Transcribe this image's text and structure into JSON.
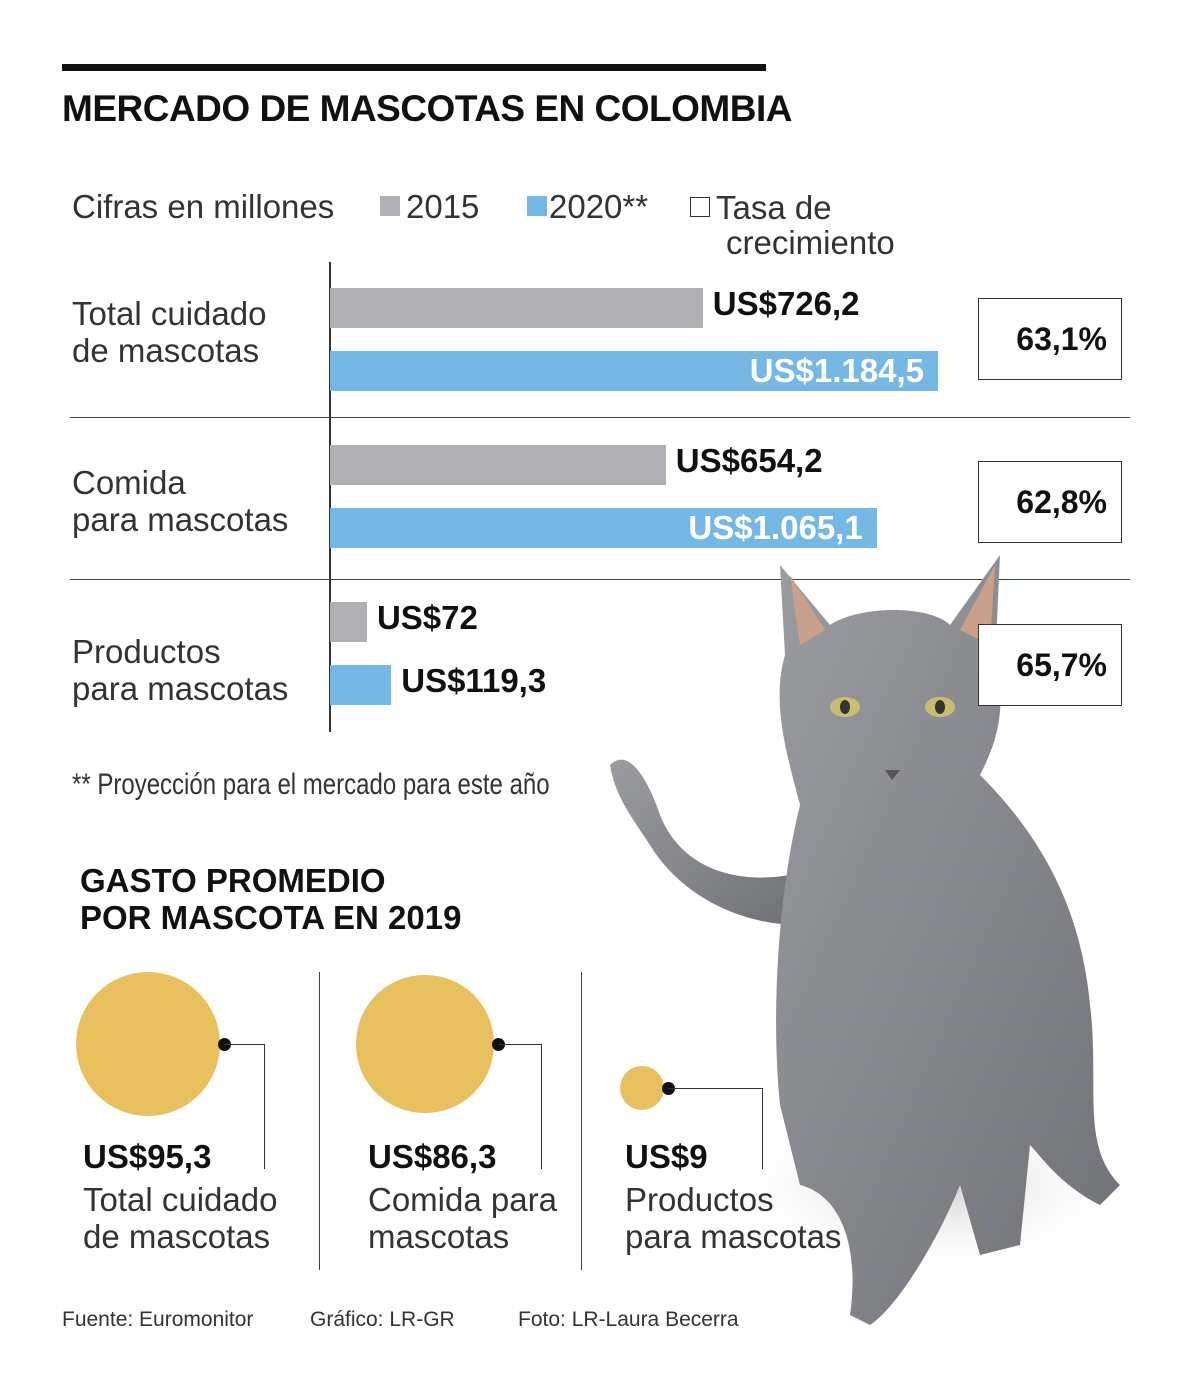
{
  "title": "MERCADO DE MASCOTAS EN COLOMBIA",
  "chart_data": [
    {
      "type": "bar",
      "orientation": "horizontal",
      "subtitle": "Cifras en millones",
      "legend": [
        "2015",
        "2020**",
        "Tasa de crecimiento"
      ],
      "colors": {
        "2015": "#b1b0b5",
        "2020": "#75b8e3"
      },
      "categories": [
        "Total cuidado de mascotas",
        "Comida para mascotas",
        "Productos para mascotas"
      ],
      "series": [
        {
          "name": "2015",
          "values": [
            726.2,
            654.2,
            72
          ],
          "labels": [
            "US$726,2",
            "US$654,2",
            "US$72"
          ]
        },
        {
          "name": "2020**",
          "values": [
            1184.5,
            1065.1,
            119.3
          ],
          "labels": [
            "US$1.184,5",
            "US$1.065,1",
            "US$119,3"
          ]
        }
      ],
      "growth": [
        "63,1%",
        "62,8%",
        "65,7%"
      ],
      "xlim": [
        0,
        1184.5
      ],
      "note": "** Proyección para el mercado para este año"
    },
    {
      "type": "bubble",
      "title": "GASTO PROMEDIO POR MASCOTA EN 2019",
      "color": "#e9c05e",
      "items": [
        {
          "value": 95.3,
          "label": "US$95,3",
          "category": "Total cuidado de mascotas"
        },
        {
          "value": 86.3,
          "label": "US$86,3",
          "category": "Comida para mascotas"
        },
        {
          "value": 9,
          "label": "US$9",
          "category": "Productos para mascotas"
        }
      ]
    }
  ],
  "legend_labels": {
    "subtitle": "Cifras en millones",
    "y2015": "2015",
    "y2020": "2020**",
    "rate1": "Tasa de",
    "rate2": "crecimiento"
  },
  "cat_lines": [
    [
      "Total cuidado",
      "de mascotas"
    ],
    [
      "Comida",
      "para mascotas"
    ],
    [
      "Productos",
      "para mascotas"
    ]
  ],
  "sub_lines": [
    "GASTO PROMEDIO",
    "POR MASCOTA EN 2019"
  ],
  "bubble_lines": [
    [
      "Total cuidado",
      "de mascotas"
    ],
    [
      "Comida para",
      "mascotas"
    ],
    [
      "Productos",
      "para mascotas"
    ]
  ],
  "footer": {
    "source": "Fuente: Euromonitor",
    "graphic": "Gráfico: LR-GR",
    "photo": "Foto: LR-Laura Becerra"
  }
}
